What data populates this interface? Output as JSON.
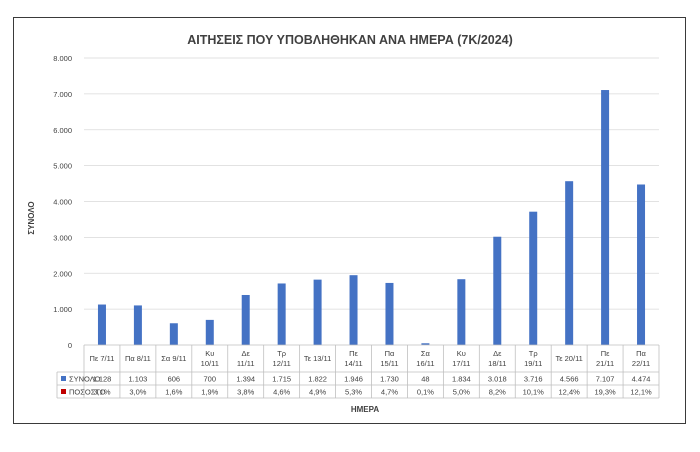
{
  "chart_data": {
    "type": "bar",
    "title": "ΑΙΤΗΣΕΙΣ ΠΟΥ ΥΠΟΒΛΗΘΗΚΑΝ ΑΝΑ ΗΜΕΡΑ (7Κ/2024)",
    "xlabel": "ΗΜΕΡΑ",
    "ylabel": "ΣΥΝΟΛΟ",
    "ylim": [
      0,
      8000
    ],
    "yticks": [
      "0",
      "1.000",
      "2.000",
      "3.000",
      "4.000",
      "5.000",
      "6.000",
      "7.000",
      "8.000"
    ],
    "grid": true,
    "legend": "data-table",
    "categories": [
      [
        "Πε 7/11"
      ],
      [
        "Πα 8/11"
      ],
      [
        "Σα 9/11"
      ],
      [
        "Κυ",
        "10/11"
      ],
      [
        "Δε",
        "11/11"
      ],
      [
        "Τρ",
        "12/11"
      ],
      [
        "Τε 13/11"
      ],
      [
        "Πε",
        "14/11"
      ],
      [
        "Πα",
        "15/11"
      ],
      [
        "Σα",
        "16/11"
      ],
      [
        "Κυ",
        "17/11"
      ],
      [
        "Δε",
        "18/11"
      ],
      [
        "Τρ",
        "19/11"
      ],
      [
        "Τε 20/11"
      ],
      [
        "Πε",
        "21/11"
      ],
      [
        "Πα",
        "22/11"
      ]
    ],
    "series": [
      {
        "name": "ΣΥΝΟΛΟ",
        "color": "#4472C4",
        "values": [
          1128,
          1103,
          606,
          700,
          1394,
          1715,
          1822,
          1946,
          1730,
          48,
          1834,
          3018,
          3716,
          4566,
          7107,
          4474
        ],
        "labels": [
          "1.128",
          "1.103",
          "606",
          "700",
          "1.394",
          "1.715",
          "1.822",
          "1.946",
          "1.730",
          "48",
          "1.834",
          "3.018",
          "3.716",
          "4.566",
          "7.107",
          "4.474"
        ]
      },
      {
        "name": "ΠΟΣΟΣΤΟ",
        "color": "#C00000",
        "values": [
          3.1,
          3.0,
          1.6,
          1.9,
          3.8,
          4.6,
          4.9,
          5.3,
          4.7,
          0.1,
          5.0,
          8.2,
          10.1,
          12.4,
          19.3,
          12.1
        ],
        "labels": [
          "3,1%",
          "3,0%",
          "1,6%",
          "1,9%",
          "3,8%",
          "4,6%",
          "4,9%",
          "5,3%",
          "4,7%",
          "0,1%",
          "5,0%",
          "8,2%",
          "10,1%",
          "12,4%",
          "19,3%",
          "12,1%"
        ]
      }
    ]
  }
}
